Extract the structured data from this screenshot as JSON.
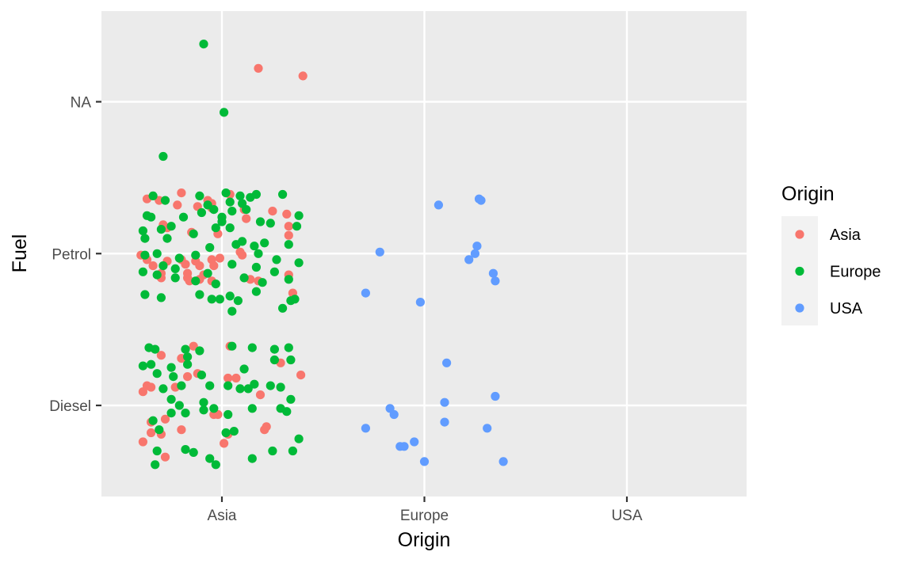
{
  "chart_data": {
    "type": "scatter",
    "jitter": true,
    "xlabel": "Origin",
    "ylabel": "Fuel",
    "categories_x": [
      "Asia",
      "Europe",
      "USA"
    ],
    "categories_y": [
      "Diesel",
      "Petrol",
      "NA"
    ],
    "legend": {
      "title": "Origin",
      "position": "right",
      "entries": [
        {
          "name": "Asia",
          "color": "#F8766D"
        },
        {
          "name": "Europe",
          "color": "#00BA38"
        },
        {
          "name": "USA",
          "color": "#619CFF"
        }
      ]
    },
    "colors": {
      "panel": "#EBEBEB",
      "grid": "#FFFFFF",
      "tick": "#333333"
    },
    "series": [
      {
        "name": "Asia",
        "points": [
          [
            0.18,
            2.22
          ],
          [
            0.4,
            2.17
          ],
          [
            -0.37,
            1.36
          ],
          [
            -0.31,
            1.35
          ],
          [
            -0.2,
            1.4
          ],
          [
            -0.07,
            1.35
          ],
          [
            -0.05,
            1.33
          ],
          [
            0.04,
            1.39
          ],
          [
            0.11,
            1.29
          ],
          [
            0.25,
            1.28
          ],
          [
            -0.22,
            1.32
          ],
          [
            -0.12,
            1.31
          ],
          [
            -0.05,
            1.3
          ],
          [
            0.12,
            1.23
          ],
          [
            -0.29,
            1.19
          ],
          [
            -0.27,
            1.17
          ],
          [
            -0.15,
            1.14
          ],
          [
            -0.02,
            1.13
          ],
          [
            0.32,
            1.26
          ],
          [
            0.33,
            1.18
          ],
          [
            0.33,
            1.12
          ],
          [
            -0.4,
            0.99
          ],
          [
            -0.37,
            0.96
          ],
          [
            -0.27,
            0.95
          ],
          [
            -0.2,
            0.96
          ],
          [
            -0.13,
            0.95
          ],
          [
            -0.05,
            0.96
          ],
          [
            -0.01,
            0.97
          ],
          [
            0.09,
            1.01
          ],
          [
            0.1,
            0.99
          ],
          [
            -0.34,
            0.92
          ],
          [
            -0.18,
            0.93
          ],
          [
            -0.11,
            0.92
          ],
          [
            -0.04,
            0.92
          ],
          [
            -0.3,
            0.87
          ],
          [
            -0.17,
            0.87
          ],
          [
            -0.09,
            0.86
          ],
          [
            -0.3,
            0.84
          ],
          [
            -0.17,
            0.84
          ],
          [
            -0.16,
            0.82
          ],
          [
            -0.11,
            0.83
          ],
          [
            -0.05,
            0.82
          ],
          [
            0.14,
            0.83
          ],
          [
            0.18,
            0.82
          ],
          [
            0.33,
            0.86
          ],
          [
            0.35,
            0.74
          ],
          [
            -0.14,
            0.39
          ],
          [
            0.04,
            0.39
          ],
          [
            -0.3,
            0.33
          ],
          [
            -0.2,
            0.31
          ],
          [
            0.29,
            0.28
          ],
          [
            -0.12,
            0.21
          ],
          [
            0.39,
            0.2
          ],
          [
            -0.17,
            0.19
          ],
          [
            0.03,
            0.18
          ],
          [
            0.07,
            0.18
          ],
          [
            -0.37,
            0.13
          ],
          [
            -0.35,
            0.12
          ],
          [
            -0.39,
            0.09
          ],
          [
            -0.23,
            0.12
          ],
          [
            0.19,
            0.07
          ],
          [
            -0.04,
            -0.06
          ],
          [
            -0.02,
            -0.06
          ],
          [
            -0.28,
            -0.09
          ],
          [
            -0.35,
            -0.11
          ],
          [
            -0.35,
            -0.18
          ],
          [
            -0.2,
            -0.16
          ],
          [
            0.21,
            -0.16
          ],
          [
            0.22,
            -0.14
          ],
          [
            -0.3,
            -0.19
          ],
          [
            0.03,
            -0.19
          ],
          [
            -0.39,
            -0.24
          ],
          [
            0.01,
            -0.25
          ],
          [
            -0.28,
            -0.34
          ]
        ]
      },
      {
        "name": "Europe",
        "points": [
          [
            -0.09,
            2.38
          ],
          [
            0.01,
            1.93
          ],
          [
            -0.29,
            1.64
          ],
          [
            -0.34,
            1.38
          ],
          [
            -0.28,
            1.35
          ],
          [
            -0.11,
            1.38
          ],
          [
            -0.07,
            1.32
          ],
          [
            0.02,
            1.4
          ],
          [
            0.09,
            1.38
          ],
          [
            0.14,
            1.37
          ],
          [
            0.17,
            1.39
          ],
          [
            0.3,
            1.39
          ],
          [
            0.04,
            1.34
          ],
          [
            0.1,
            1.33
          ],
          [
            -0.37,
            1.25
          ],
          [
            -0.35,
            1.24
          ],
          [
            -0.19,
            1.24
          ],
          [
            -0.25,
            1.18
          ],
          [
            -0.1,
            1.27
          ],
          [
            -0.04,
            1.29
          ],
          [
            0.0,
            1.24
          ],
          [
            0.05,
            1.28
          ],
          [
            0.12,
            1.29
          ],
          [
            0.19,
            1.21
          ],
          [
            0.24,
            1.2
          ],
          [
            0.38,
            1.25
          ],
          [
            0.37,
            1.18
          ],
          [
            -0.39,
            1.15
          ],
          [
            -0.3,
            1.16
          ],
          [
            -0.27,
            1.1
          ],
          [
            -0.38,
            1.1
          ],
          [
            -0.14,
            1.13
          ],
          [
            -0.03,
            1.17
          ],
          [
            0.0,
            1.21
          ],
          [
            0.04,
            1.17
          ],
          [
            0.1,
            1.08
          ],
          [
            0.16,
            1.05
          ],
          [
            0.21,
            1.07
          ],
          [
            0.33,
            1.06
          ],
          [
            -0.38,
            0.99
          ],
          [
            -0.32,
            1.0
          ],
          [
            -0.21,
            0.97
          ],
          [
            -0.13,
            0.99
          ],
          [
            -0.06,
            1.04
          ],
          [
            0.07,
            1.06
          ],
          [
            0.18,
            1.0
          ],
          [
            0.27,
            0.96
          ],
          [
            0.38,
            0.94
          ],
          [
            -0.29,
            0.92
          ],
          [
            -0.23,
            0.9
          ],
          [
            -0.07,
            0.87
          ],
          [
            0.05,
            0.93
          ],
          [
            0.17,
            0.91
          ],
          [
            0.26,
            0.88
          ],
          [
            -0.39,
            0.88
          ],
          [
            -0.32,
            0.86
          ],
          [
            -0.23,
            0.84
          ],
          [
            -0.13,
            0.82
          ],
          [
            -0.03,
            0.8
          ],
          [
            0.11,
            0.84
          ],
          [
            0.2,
            0.81
          ],
          [
            0.33,
            0.83
          ],
          [
            -0.38,
            0.73
          ],
          [
            -0.3,
            0.71
          ],
          [
            -0.11,
            0.73
          ],
          [
            -0.05,
            0.7
          ],
          [
            -0.01,
            0.7
          ],
          [
            0.04,
            0.72
          ],
          [
            0.08,
            0.69
          ],
          [
            0.17,
            0.75
          ],
          [
            0.34,
            0.69
          ],
          [
            0.36,
            0.7
          ],
          [
            0.3,
            0.64
          ],
          [
            0.05,
            0.62
          ],
          [
            -0.36,
            0.38
          ],
          [
            -0.33,
            0.37
          ],
          [
            -0.18,
            0.37
          ],
          [
            -0.11,
            0.36
          ],
          [
            0.05,
            0.39
          ],
          [
            0.15,
            0.38
          ],
          [
            0.26,
            0.37
          ],
          [
            0.33,
            0.38
          ],
          [
            -0.39,
            0.26
          ],
          [
            -0.35,
            0.27
          ],
          [
            -0.25,
            0.25
          ],
          [
            -0.17,
            0.27
          ],
          [
            -0.17,
            0.32
          ],
          [
            0.11,
            0.24
          ],
          [
            0.26,
            0.3
          ],
          [
            0.34,
            0.3
          ],
          [
            -0.32,
            0.21
          ],
          [
            -0.24,
            0.19
          ],
          [
            -0.1,
            0.2
          ],
          [
            -0.06,
            0.13
          ],
          [
            -0.29,
            0.11
          ],
          [
            -0.2,
            0.13
          ],
          [
            0.03,
            0.13
          ],
          [
            0.09,
            0.11
          ],
          [
            0.13,
            0.11
          ],
          [
            0.16,
            0.14
          ],
          [
            0.24,
            0.13
          ],
          [
            0.29,
            0.12
          ],
          [
            0.34,
            0.04
          ],
          [
            -0.25,
            0.04
          ],
          [
            -0.09,
            0.02
          ],
          [
            -0.21,
            0.0
          ],
          [
            -0.25,
            -0.05
          ],
          [
            -0.18,
            -0.05
          ],
          [
            -0.09,
            -0.03
          ],
          [
            -0.04,
            -0.02
          ],
          [
            0.03,
            -0.06
          ],
          [
            0.15,
            -0.02
          ],
          [
            0.29,
            -0.02
          ],
          [
            0.32,
            -0.04
          ],
          [
            -0.34,
            -0.1
          ],
          [
            -0.31,
            -0.16
          ],
          [
            0.02,
            -0.18
          ],
          [
            0.06,
            -0.17
          ],
          [
            0.38,
            -0.22
          ],
          [
            -0.32,
            -0.3
          ],
          [
            -0.18,
            -0.29
          ],
          [
            -0.14,
            -0.31
          ],
          [
            -0.06,
            -0.35
          ],
          [
            0.15,
            -0.35
          ],
          [
            0.25,
            -0.3
          ],
          [
            0.35,
            -0.3
          ],
          [
            -0.33,
            -0.39
          ],
          [
            -0.03,
            -0.39
          ]
        ]
      },
      {
        "name": "USA",
        "points": [
          [
            1.07,
            1.32
          ],
          [
            1.27,
            1.36
          ],
          [
            1.28,
            1.35
          ],
          [
            1.26,
            1.05
          ],
          [
            1.25,
            1.0
          ],
          [
            1.22,
            0.96
          ],
          [
            1.34,
            0.87
          ],
          [
            1.35,
            0.82
          ],
          [
            0.78,
            1.01
          ],
          [
            0.71,
            0.74
          ],
          [
            0.98,
            0.68
          ],
          [
            1.11,
            0.28
          ],
          [
            1.35,
            0.06
          ],
          [
            1.1,
            0.02
          ],
          [
            0.83,
            -0.02
          ],
          [
            0.85,
            -0.06
          ],
          [
            0.71,
            -0.15
          ],
          [
            1.1,
            -0.11
          ],
          [
            1.31,
            -0.15
          ],
          [
            0.88,
            -0.27
          ],
          [
            0.9,
            -0.27
          ],
          [
            0.95,
            -0.24
          ],
          [
            1.0,
            -0.37
          ],
          [
            1.39,
            -0.37
          ]
        ]
      }
    ]
  }
}
